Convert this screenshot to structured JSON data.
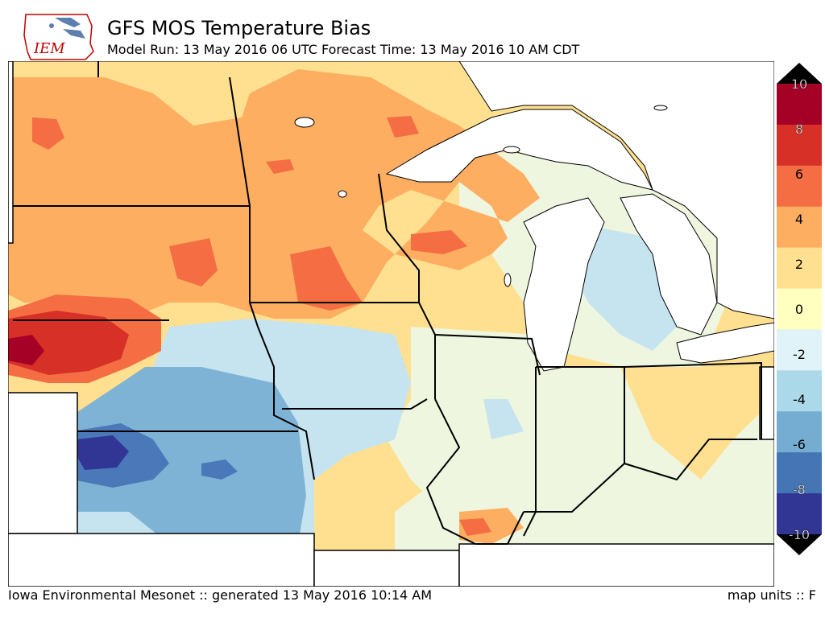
{
  "header": {
    "logo_text": "IEM",
    "title": "GFS MOS Temperature Bias",
    "subtitle": "Model Run: 13 May 2016 06 UTC Forecast Time: 13 May 2016 10 AM CDT"
  },
  "footer": {
    "credit": "Iowa Environmental Mesonet :: generated 13 May 2016 10:14 AM",
    "units": "map units :: F"
  },
  "colorbar": {
    "labels": [
      "10",
      "8",
      "6",
      "4",
      "2",
      "0",
      "-2",
      "-4",
      "-6",
      "-8",
      "-10"
    ],
    "colors": [
      "#a50026",
      "#d73027",
      "#f46d43",
      "#fdae61",
      "#fee090",
      "#ffffbf",
      "#e0f3f8",
      "#abd9e9",
      "#74add1",
      "#4575b4",
      "#313695"
    ]
  },
  "palette": {
    "bin_8_10": "#a50026",
    "bin_6_8": "#d73027",
    "bin_4_6": "#f46d43",
    "bin_2_4": "#fdae61",
    "bin_0_2": "#fee090",
    "bin_m2_0": "#eef6e0",
    "bin_m4_m2": "#c6e4ef",
    "bin_m6_m4": "#7fb3d6",
    "bin_m8_m6": "#4a78b8",
    "bin_m10_m8": "#313695",
    "water": "#ffffff",
    "boundary": "#000000"
  }
}
